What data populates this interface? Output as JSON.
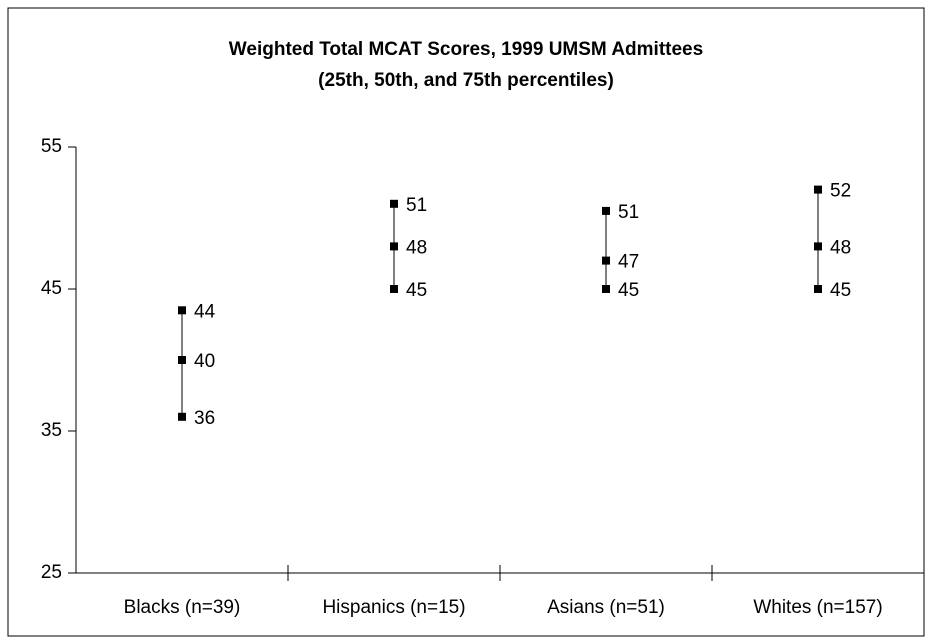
{
  "chart_data": {
    "type": "range",
    "title": "Weighted Total MCAT Scores, 1999 UMSM Admittees",
    "subtitle": "(25th, 50th, and 75th percentiles)",
    "categories": [
      "Blacks (n=39)",
      "Hispanics (n=15)",
      "Asians (n=51)",
      "Whites (n=157)"
    ],
    "q25": [
      36,
      45,
      45,
      45
    ],
    "q50": [
      40,
      48,
      47,
      48
    ],
    "q75": [
      43.5,
      51,
      50.5,
      52
    ],
    "q75_labels": [
      "44",
      "51",
      "51",
      "52"
    ],
    "color": "#000000",
    "ylim": [
      25,
      55
    ],
    "yticks": [
      25,
      35,
      45,
      55
    ],
    "grid": false
  }
}
